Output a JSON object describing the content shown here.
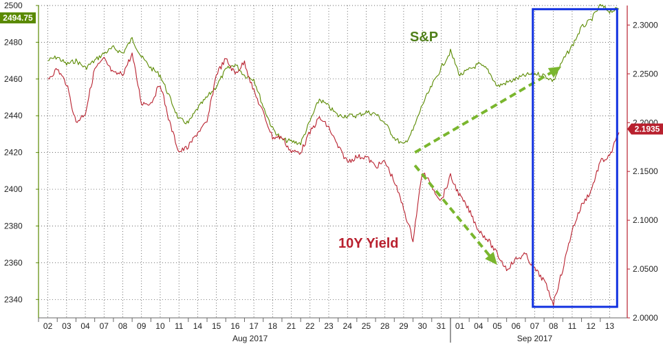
{
  "chart_data": {
    "type": "line",
    "left_axis": {
      "ylim": [
        2330,
        2500
      ],
      "ticks": [
        2340,
        2360,
        2380,
        2400,
        2420,
        2440,
        2460,
        2480,
        2500
      ],
      "tick_labels": [
        "2340",
        "2360",
        "2380",
        "2400",
        "2420",
        "2440",
        "2460",
        "2480",
        "2500"
      ]
    },
    "right_axis": {
      "ylim": [
        2.0,
        2.32
      ],
      "ticks": [
        2.0,
        2.05,
        2.1,
        2.15,
        2.2,
        2.25,
        2.3
      ],
      "tick_labels": [
        "2.0000",
        "2.0500",
        "2.1000",
        "2.1500",
        "2.2000",
        "2.2500",
        "2.3000"
      ]
    },
    "x_labels": [
      "02",
      "03",
      "04",
      "07",
      "08",
      "09",
      "10",
      "11",
      "14",
      "15",
      "16",
      "17",
      "18",
      "21",
      "22",
      "23",
      "24",
      "25",
      "28",
      "29",
      "30",
      "31",
      "01",
      "04",
      "05",
      "06",
      "07",
      "08",
      "11",
      "12",
      "13"
    ],
    "months": [
      {
        "label": "Aug 2017",
        "index": 10.8
      },
      {
        "label": "Sep 2017",
        "index": 26.0
      }
    ],
    "month_divider_index": 21.5,
    "grid": true,
    "series": [
      {
        "name": "S&P",
        "axis": "left",
        "color": "#5a8a00",
        "last_value": "2494.75",
        "points": [
          [
            0,
            2470
          ],
          [
            0.5,
            2472
          ],
          [
            1,
            2468
          ],
          [
            1.5,
            2470
          ],
          [
            2,
            2466
          ],
          [
            2.5,
            2470
          ],
          [
            3,
            2474
          ],
          [
            3.5,
            2477
          ],
          [
            4,
            2474
          ],
          [
            4.5,
            2482
          ],
          [
            5,
            2472
          ],
          [
            5.5,
            2466
          ],
          [
            6,
            2462
          ],
          [
            6.5,
            2450
          ],
          [
            7,
            2438
          ],
          [
            7.5,
            2436
          ],
          [
            8,
            2444
          ],
          [
            8.5,
            2450
          ],
          [
            9,
            2456
          ],
          [
            9.5,
            2465
          ],
          [
            10,
            2468
          ],
          [
            10.5,
            2462
          ],
          [
            11,
            2460
          ],
          [
            11.5,
            2445
          ],
          [
            12,
            2433
          ],
          [
            12.5,
            2427
          ],
          [
            13,
            2426
          ],
          [
            13.5,
            2425
          ],
          [
            14,
            2437
          ],
          [
            14.5,
            2449
          ],
          [
            15,
            2445
          ],
          [
            15.5,
            2440
          ],
          [
            16,
            2440
          ],
          [
            16.5,
            2440
          ],
          [
            17,
            2442
          ],
          [
            17.5,
            2441
          ],
          [
            18,
            2436
          ],
          [
            18.5,
            2428
          ],
          [
            19,
            2424
          ],
          [
            19.5,
            2432
          ],
          [
            20,
            2446
          ],
          [
            20.5,
            2456
          ],
          [
            21,
            2466
          ],
          [
            21.5,
            2475
          ],
          [
            22,
            2462
          ],
          [
            22.5,
            2465
          ],
          [
            23,
            2468
          ],
          [
            23.5,
            2465
          ],
          [
            24,
            2456
          ],
          [
            24.5,
            2458
          ],
          [
            25,
            2460
          ],
          [
            25.5,
            2462
          ],
          [
            26,
            2463
          ],
          [
            26.5,
            2462
          ],
          [
            27,
            2459
          ],
          [
            27.5,
            2470
          ],
          [
            28,
            2478
          ],
          [
            28.5,
            2488
          ],
          [
            29,
            2492
          ],
          [
            29.5,
            2500
          ],
          [
            30,
            2497
          ],
          [
            30.5,
            2498
          ]
        ]
      },
      {
        "name": "10Y Yield",
        "axis": "right",
        "color": "#b8202e",
        "last_value": "2.1935",
        "points": [
          [
            0,
            2.245
          ],
          [
            0.5,
            2.255
          ],
          [
            1,
            2.24
          ],
          [
            1.5,
            2.2
          ],
          [
            2,
            2.21
          ],
          [
            2.5,
            2.255
          ],
          [
            3,
            2.265
          ],
          [
            3.5,
            2.25
          ],
          [
            4,
            2.25
          ],
          [
            4.5,
            2.27
          ],
          [
            5,
            2.22
          ],
          [
            5.5,
            2.22
          ],
          [
            6,
            2.24
          ],
          [
            6.5,
            2.2
          ],
          [
            7,
            2.17
          ],
          [
            7.5,
            2.175
          ],
          [
            8,
            2.19
          ],
          [
            8.5,
            2.2
          ],
          [
            9,
            2.25
          ],
          [
            9.5,
            2.265
          ],
          [
            10,
            2.25
          ],
          [
            10.5,
            2.262
          ],
          [
            11,
            2.232
          ],
          [
            11.5,
            2.21
          ],
          [
            12,
            2.185
          ],
          [
            12.5,
            2.185
          ],
          [
            13,
            2.17
          ],
          [
            13.5,
            2.17
          ],
          [
            14,
            2.19
          ],
          [
            14.5,
            2.205
          ],
          [
            15,
            2.195
          ],
          [
            15.5,
            2.175
          ],
          [
            16,
            2.16
          ],
          [
            16.5,
            2.165
          ],
          [
            17,
            2.165
          ],
          [
            17.5,
            2.155
          ],
          [
            18,
            2.16
          ],
          [
            18.5,
            2.14
          ],
          [
            19,
            2.112
          ],
          [
            19.5,
            2.08
          ],
          [
            20,
            2.15
          ],
          [
            20.5,
            2.135
          ],
          [
            21,
            2.12
          ],
          [
            21.5,
            2.145
          ],
          [
            22,
            2.125
          ],
          [
            22.5,
            2.11
          ],
          [
            23,
            2.09
          ],
          [
            23.5,
            2.08
          ],
          [
            24,
            2.065
          ],
          [
            24.5,
            2.05
          ],
          [
            25,
            2.06
          ],
          [
            25.5,
            2.065
          ],
          [
            26,
            2.05
          ],
          [
            26.5,
            2.038
          ],
          [
            27,
            2.015
          ],
          [
            27.5,
            2.05
          ],
          [
            28,
            2.09
          ],
          [
            28.5,
            2.115
          ],
          [
            29,
            2.13
          ],
          [
            29.5,
            2.16
          ],
          [
            30,
            2.165
          ],
          [
            30.5,
            2.19
          ]
        ]
      }
    ],
    "annotations": [
      {
        "type": "text",
        "text": "S&P",
        "color": "#4f7f1a"
      },
      {
        "type": "text",
        "text": "10Y Yield",
        "color": "#b8202e"
      },
      {
        "type": "arrow",
        "style": "dashed",
        "color": "#7ab62e",
        "from": [
          19.6,
          2420
        ],
        "to": [
          27.3,
          2466
        ],
        "axis": "left"
      },
      {
        "type": "arrow",
        "style": "dashed",
        "color": "#7ab62e",
        "from": [
          19.6,
          2413
        ],
        "to": [
          23.9,
          2360
        ],
        "axis": "left"
      },
      {
        "type": "box",
        "color": "#1030e0",
        "x_range": [
          26.4,
          30.9
        ],
        "y_range": [
          2336,
          2498
        ],
        "axis": "left"
      }
    ]
  }
}
